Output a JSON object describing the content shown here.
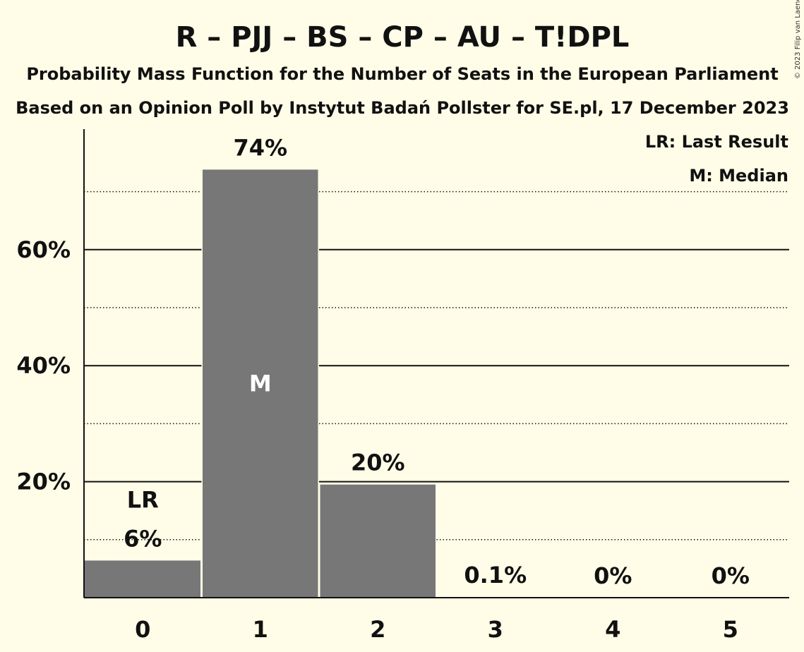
{
  "title": "R – PJJ – BS – CP – AU – T!DPL",
  "subtitle1": "Probability Mass Function for the Number of Seats in the European Parliament",
  "subtitle2": "Based on an Opinion Poll by Instytut Badań Pollster for SE.pl, 17 December 2023",
  "copyright": "© 2023 Filip van Laenen",
  "legend": {
    "last_result": "LR: Last Result",
    "median": "M: Median"
  },
  "colors": {
    "background": "#fffde7",
    "bar": "#777777",
    "text": "#111111"
  },
  "chart_data": {
    "type": "bar",
    "categories": [
      "0",
      "1",
      "2",
      "3",
      "4",
      "5"
    ],
    "values": [
      6.4,
      73.8,
      19.5,
      0.1,
      0,
      0
    ],
    "data_labels": [
      "6%",
      "74%",
      "20%",
      "0.1%",
      "0%",
      "0%"
    ],
    "ylim": [
      0,
      80
    ],
    "yticks": [
      20,
      40,
      60
    ],
    "ytick_labels": [
      "20%",
      "40%",
      "60%"
    ],
    "minor_gridlines": [
      10,
      30,
      50,
      70
    ],
    "last_result_category": "0",
    "last_result_label": "LR",
    "median_category": "1",
    "median_label": "M",
    "legend_position": "top-right",
    "grid": true
  }
}
